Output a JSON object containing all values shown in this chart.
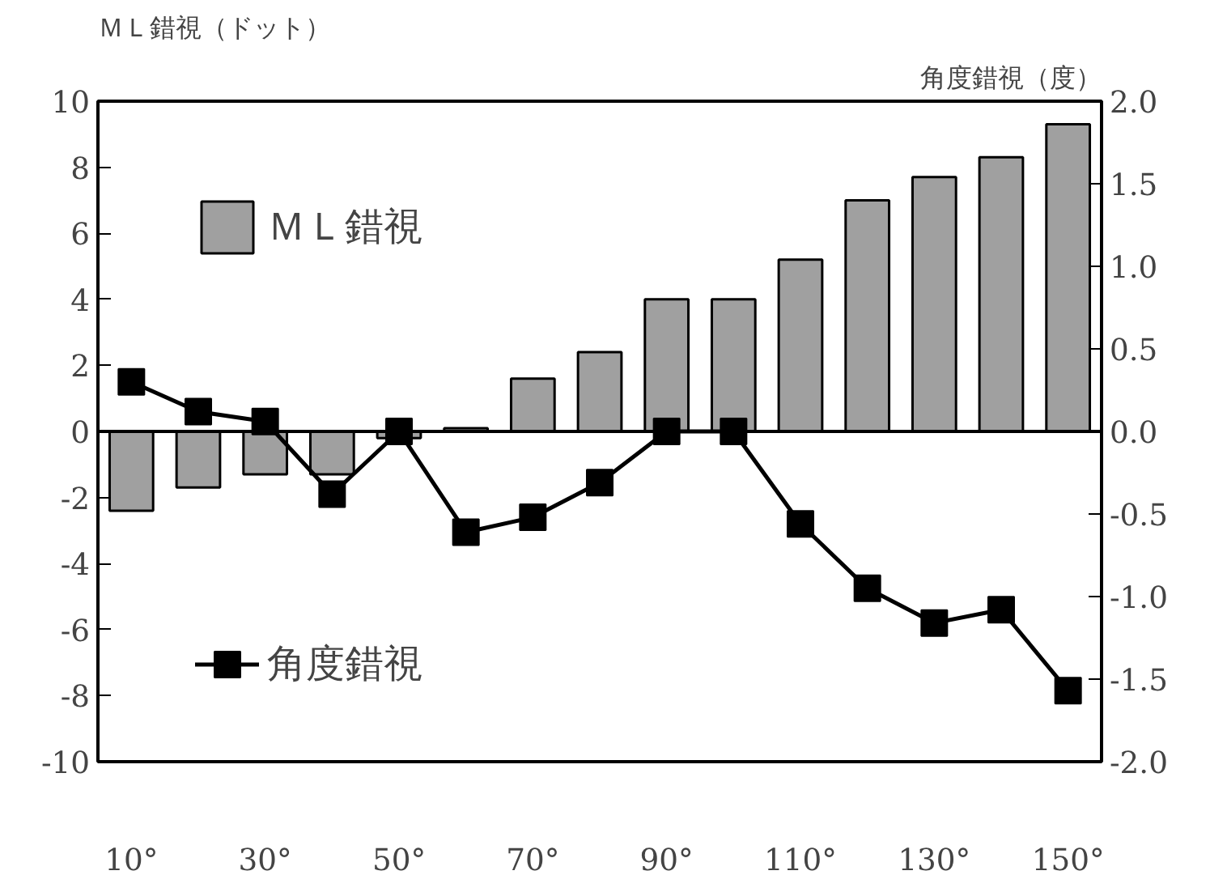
{
  "chart_data": {
    "type": "bar",
    "ylabel": "ＭＬ錯視（ドット）",
    "y2label": "角度錯視（度）",
    "categories": [
      "10°",
      null,
      "30°",
      null,
      "50°",
      null,
      "70°",
      null,
      "90°",
      null,
      "110°",
      null,
      "130°",
      null,
      "150°"
    ],
    "series": [
      {
        "name": "ＭＬ錯視",
        "color": "#a0a0a0",
        "values": [
          -2.4,
          -1.7,
          -1.3,
          -1.3,
          -0.2,
          0.1,
          1.6,
          2.4,
          4.0,
          4.0,
          5.2,
          7.0,
          7.7,
          8.3,
          9.3
        ]
      },
      {
        "name": "角度錯視",
        "type": "line",
        "axis": "y2",
        "color": "#000000",
        "marker": "square",
        "values": [
          0.3,
          0.12,
          0.06,
          -0.38,
          0.0,
          -0.61,
          -0.52,
          -0.31,
          0.0,
          0.0,
          -0.56,
          -0.95,
          -1.16,
          -1.08,
          -1.57
        ]
      }
    ],
    "ylim": [
      -10,
      10
    ],
    "yticks": [
      -10,
      -8,
      -6,
      -4,
      -2,
      0,
      2,
      4,
      6,
      8,
      10
    ],
    "y2lim": [
      -2,
      2
    ],
    "y2ticks": [
      {
        "value": -2,
        "label": "-2.0"
      },
      {
        "value": -1.5,
        "label": "-1.5"
      },
      {
        "value": -1,
        "label": "-1.0"
      },
      {
        "value": -0.5,
        "label": "-0.5"
      },
      {
        "value": 0,
        "label": "0.0"
      },
      {
        "value": 0.5,
        "label": "0.5"
      },
      {
        "value": 1,
        "label": "1.0"
      },
      {
        "value": 1.5,
        "label": "1.5"
      },
      {
        "value": 2,
        "label": "2.0"
      }
    ],
    "ref_lines": [
      {
        "axis": "y",
        "value": 0,
        "color": "#000000"
      }
    ],
    "grid": false,
    "legend": "left"
  }
}
